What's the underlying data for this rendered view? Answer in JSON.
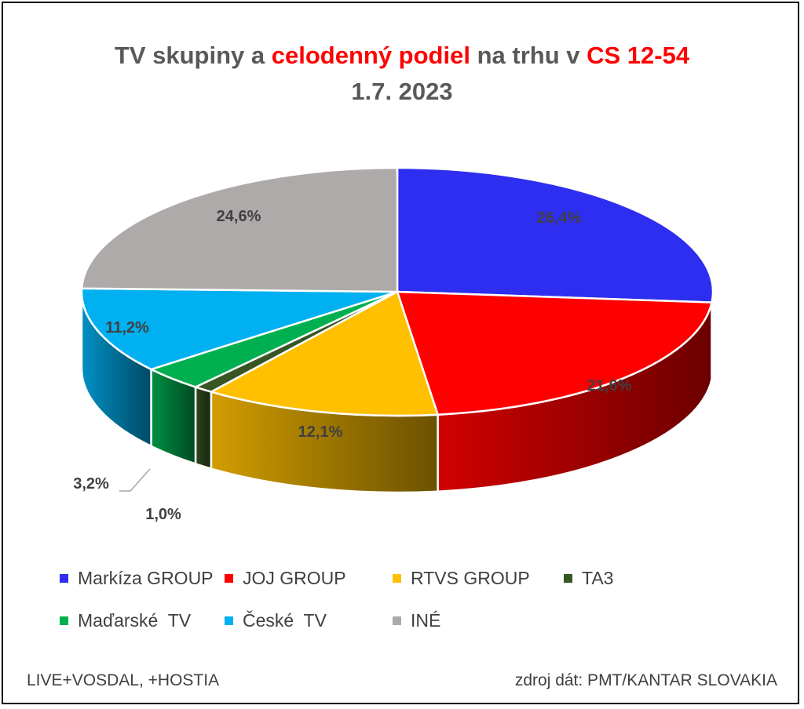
{
  "title": {
    "part1": "TV skupiny a ",
    "part2": "celodenný podiel",
    "part3": " na trhu v ",
    "part4": "CS 12-54",
    "line2": "1.7. 2023"
  },
  "chart_data": {
    "type": "pie",
    "categories": [
      "Markíza GROUP",
      "JOJ GROUP",
      "RTVS GROUP",
      "TA3",
      "Maďarské  TV",
      "České  TV",
      "INÉ"
    ],
    "values": [
      26.4,
      21.6,
      12.1,
      1.0,
      3.2,
      11.2,
      24.6
    ],
    "labels": [
      "26,4%",
      "21,6%",
      "12,1%",
      "1,0%",
      "3,2%",
      "11,2%",
      "24,6%"
    ],
    "colors": [
      "#2e2ef0",
      "#ff0000",
      "#ffc000",
      "#375623",
      "#00b050",
      "#00b0f0",
      "#aeaaaa"
    ],
    "legend_position": "bottom"
  },
  "footer": {
    "left": "LIVE+VOSDAL,  +HOSTIA",
    "right": "zdroj dát: PMT/KANTAR SLOVAKIA"
  }
}
